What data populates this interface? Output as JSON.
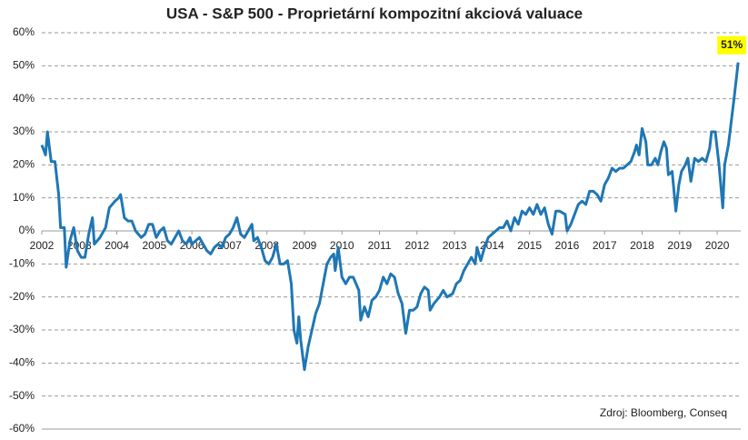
{
  "chart_data": {
    "type": "line",
    "title": "USA - S&P 500 - Proprietární kompozitní akciová valuace",
    "source": "Zdroj: Bloomberg, Conseq",
    "color": "#1f77b4",
    "label_color": "#ffff00",
    "grid": true,
    "xlim": [
      2002,
      2020.58
    ],
    "xticks": [
      2002,
      2003,
      2004,
      2005,
      2006,
      2007,
      2008,
      2009,
      2010,
      2011,
      2012,
      2013,
      2014,
      2015,
      2016,
      2017,
      2018,
      2019,
      2020
    ],
    "ylim": [
      -60,
      60
    ],
    "yticks": [
      {
        "value": -60,
        "label": "-60%"
      },
      {
        "value": -50,
        "label": "-50%"
      },
      {
        "value": -40,
        "label": "-40%"
      },
      {
        "value": -30,
        "label": "-30%"
      },
      {
        "value": -20,
        "label": "-20%"
      },
      {
        "value": -10,
        "label": "-10%"
      },
      {
        "value": 0,
        "label": "0%"
      },
      {
        "value": 10,
        "label": "10%"
      },
      {
        "value": 20,
        "label": "20%"
      },
      {
        "value": 30,
        "label": "30%"
      },
      {
        "value": 40,
        "label": "40%"
      },
      {
        "value": 50,
        "label": "50%"
      },
      {
        "value": 60,
        "label": "60%"
      }
    ],
    "x": [
      2002.0,
      2002.1,
      2002.15,
      2002.25,
      2002.35,
      2002.45,
      2002.5,
      2002.6,
      2002.65,
      2002.75,
      2002.85,
      2002.95,
      2003.05,
      2003.15,
      2003.25,
      2003.35,
      2003.4,
      2003.55,
      2003.7,
      2003.8,
      2003.95,
      2004.05,
      2004.1,
      2004.2,
      2004.3,
      2004.4,
      2004.5,
      2004.65,
      2004.75,
      2004.85,
      2004.95,
      2005.05,
      2005.15,
      2005.25,
      2005.35,
      2005.45,
      2005.55,
      2005.65,
      2005.75,
      2005.85,
      2005.95,
      2006.0,
      2006.1,
      2006.2,
      2006.3,
      2006.4,
      2006.5,
      2006.6,
      2006.7,
      2006.8,
      2006.9,
      2007.0,
      2007.1,
      2007.2,
      2007.3,
      2007.4,
      2007.5,
      2007.6,
      2007.65,
      2007.75,
      2007.85,
      2007.95,
      2008.05,
      2008.15,
      2008.25,
      2008.35,
      2008.45,
      2008.55,
      2008.65,
      2008.72,
      2008.8,
      2008.85,
      2008.9,
      2009.0,
      2009.1,
      2009.2,
      2009.3,
      2009.4,
      2009.5,
      2009.6,
      2009.7,
      2009.78,
      2009.82,
      2009.9,
      2010.0,
      2010.1,
      2010.2,
      2010.3,
      2010.45,
      2010.5,
      2010.6,
      2010.7,
      2010.8,
      2010.9,
      2011.0,
      2011.1,
      2011.2,
      2011.3,
      2011.4,
      2011.5,
      2011.6,
      2011.7,
      2011.8,
      2011.9,
      2012.0,
      2012.1,
      2012.2,
      2012.3,
      2012.35,
      2012.45,
      2012.6,
      2012.7,
      2012.8,
      2012.95,
      2013.05,
      2013.15,
      2013.25,
      2013.35,
      2013.45,
      2013.55,
      2013.6,
      2013.7,
      2013.8,
      2013.9,
      2014.0,
      2014.1,
      2014.2,
      2014.3,
      2014.4,
      2014.5,
      2014.6,
      2014.7,
      2014.8,
      2014.9,
      2015.0,
      2015.1,
      2015.2,
      2015.3,
      2015.4,
      2015.5,
      2015.6,
      2015.7,
      2015.8,
      2015.95,
      2016.0,
      2016.1,
      2016.2,
      2016.3,
      2016.4,
      2016.5,
      2016.6,
      2016.7,
      2016.8,
      2016.9,
      2017.0,
      2017.1,
      2017.2,
      2017.3,
      2017.4,
      2017.5,
      2017.6,
      2017.7,
      2017.8,
      2017.85,
      2017.92,
      2018.0,
      2018.1,
      2018.15,
      2018.25,
      2018.35,
      2018.42,
      2018.5,
      2018.58,
      2018.65,
      2018.7,
      2018.8,
      2018.9,
      2018.98,
      2019.05,
      2019.15,
      2019.22,
      2019.3,
      2019.4,
      2019.5,
      2019.6,
      2019.7,
      2019.8,
      2019.85,
      2019.95,
      2020.05,
      2020.15,
      2020.2,
      2020.3,
      2020.45,
      2020.56
    ],
    "values": [
      26,
      23,
      30,
      21,
      21,
      11,
      1,
      1,
      -11,
      -3,
      1,
      -6,
      -8,
      -8,
      -1,
      4,
      -4,
      -2,
      1,
      7,
      9,
      10,
      11,
      4,
      3,
      3,
      0,
      -2,
      -1,
      2,
      2,
      -2,
      0,
      1,
      -3,
      -4,
      -2,
      0,
      -3,
      -4,
      -2,
      -4,
      -3,
      -2,
      -4,
      -6,
      -7,
      -5,
      -4,
      -5,
      -2,
      -1,
      1,
      4,
      -1,
      -2,
      0,
      2,
      -3,
      -2,
      -5,
      -9,
      -10,
      -8,
      -4,
      -10,
      -10,
      -9,
      -16,
      -30,
      -34,
      -26,
      -33,
      -42,
      -35,
      -30,
      -25,
      -22,
      -16,
      -10,
      -8,
      -7,
      -12,
      -5,
      -14,
      -16,
      -14,
      -14,
      -18,
      -27,
      -23,
      -26,
      -21,
      -20,
      -18,
      -14,
      -16,
      -13,
      -14,
      -19,
      -22,
      -31,
      -24,
      -24,
      -23,
      -19,
      -17,
      -18,
      -24,
      -22,
      -20,
      -18,
      -20,
      -19,
      -16,
      -15,
      -12,
      -10,
      -8,
      -10,
      -5,
      -9,
      -5,
      -2,
      -1,
      0,
      1,
      1,
      3,
      0,
      4,
      2,
      6,
      5,
      7,
      5,
      8,
      5,
      7,
      2,
      -1,
      6,
      6,
      5,
      0,
      2,
      5,
      8,
      9,
      8,
      12,
      12,
      11,
      9,
      14,
      16,
      19,
      18,
      19,
      19,
      20,
      21,
      24,
      26,
      23,
      31,
      27,
      20,
      20,
      22,
      20,
      24,
      27,
      25,
      17,
      18,
      6,
      14,
      18,
      20,
      22,
      15,
      22,
      21,
      22,
      21,
      25,
      30,
      30,
      20,
      7,
      20,
      26,
      40,
      51
    ],
    "value_labels": [
      null,
      null,
      null,
      null,
      null,
      null,
      null,
      null,
      null,
      null,
      null,
      null,
      null,
      null,
      null,
      null,
      null,
      null,
      null,
      null,
      null,
      null,
      null,
      null,
      null,
      null,
      null,
      null,
      null,
      null,
      null,
      null,
      null,
      null,
      null,
      null,
      null,
      null,
      null,
      null,
      null,
      null,
      null,
      null,
      null,
      null,
      null,
      null,
      null,
      null,
      null,
      null,
      null,
      null,
      null,
      null,
      null,
      null,
      null,
      null,
      null,
      null,
      null,
      null,
      null,
      null,
      null,
      null,
      null,
      null,
      null,
      null,
      null,
      null,
      null,
      null,
      null,
      null,
      null,
      null,
      null,
      null,
      null,
      null,
      null,
      null,
      null,
      null,
      null,
      null,
      null,
      null,
      null,
      null,
      null,
      null,
      null,
      null,
      null,
      null,
      null,
      null,
      null,
      null,
      null,
      null,
      null,
      null,
      null,
      null,
      null,
      null,
      null,
      null,
      null,
      null,
      null,
      null,
      null,
      null,
      null,
      null,
      null,
      null,
      null,
      null,
      null,
      null,
      null,
      null,
      null,
      null,
      null,
      null,
      null,
      null,
      null,
      null,
      null,
      null,
      null,
      null,
      null,
      null,
      null,
      null,
      null,
      null,
      null,
      null,
      null,
      null,
      null,
      null,
      null,
      null,
      null,
      null,
      null,
      null,
      null,
      null,
      null,
      null,
      null,
      null,
      null,
      null,
      null,
      null,
      null,
      null,
      null,
      null,
      null,
      null,
      null,
      null,
      null,
      null,
      null,
      null,
      null,
      null,
      null,
      null,
      null,
      null,
      null,
      null,
      null,
      null,
      null,
      null,
      "51%"
    ]
  }
}
